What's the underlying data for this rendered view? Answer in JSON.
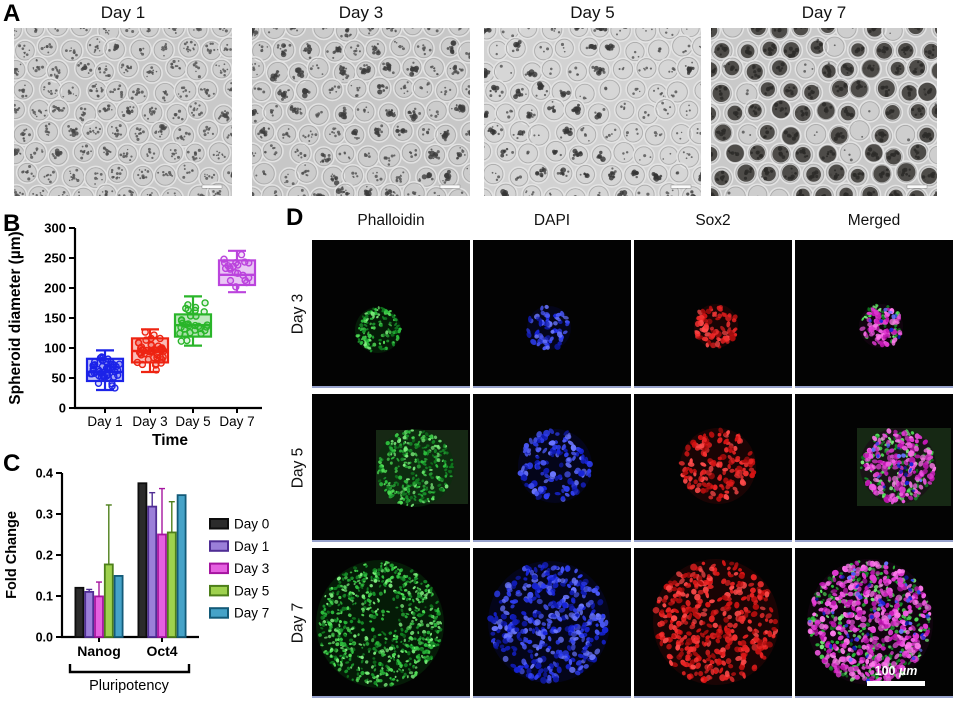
{
  "figure": {
    "panel_a": {
      "label": "A",
      "images": [
        {
          "title": "Day 1"
        },
        {
          "title": "Day 3"
        },
        {
          "title": "Day 5"
        },
        {
          "title": "Day 7"
        }
      ]
    },
    "panel_b": {
      "label": "B"
    },
    "panel_c": {
      "label": "C"
    },
    "panel_d": {
      "label": "D",
      "columns": [
        "Phalloidin",
        "DAPI",
        "Sox2",
        "Merged"
      ],
      "rows": [
        "Day 3",
        "Day 5",
        "Day 7"
      ],
      "scale_bar": "100 µm"
    }
  },
  "chart_data": [
    {
      "type": "box",
      "panel": "B",
      "title": "",
      "xlabel": "Time",
      "ylabel": "Spheroid diameter (µm)",
      "ylim": [
        0,
        300
      ],
      "yticks": [
        0,
        50,
        100,
        150,
        200,
        250,
        300
      ],
      "categories": [
        "Day 1",
        "Day 3",
        "Day 5",
        "Day 7"
      ],
      "colors": [
        "#1c23e8",
        "#ee2412",
        "#2ab52a",
        "#bb44dd"
      ],
      "boxes": [
        {
          "min": 30,
          "q1": 45,
          "median": 60,
          "q3": 82,
          "max": 96,
          "n_points": 48
        },
        {
          "min": 60,
          "q1": 76,
          "median": 95,
          "q3": 116,
          "max": 131,
          "n_points": 44
        },
        {
          "min": 104,
          "q1": 119,
          "median": 138,
          "q3": 156,
          "max": 186,
          "n_points": 30
        },
        {
          "min": 193,
          "q1": 205,
          "median": 222,
          "q3": 246,
          "max": 262,
          "n_points": 20
        }
      ]
    },
    {
      "type": "bar",
      "panel": "C",
      "title": "",
      "xlabel": "",
      "ylabel": "Fold Change",
      "ylim": [
        0,
        0.4
      ],
      "ytick_labels": [
        "0.0",
        "0.1",
        "0.2",
        "0.3",
        "0.4"
      ],
      "categories": [
        "Nanog",
        "Oct4"
      ],
      "group_label": "Pluripotency",
      "legend_position": "right",
      "series": [
        {
          "name": "Day 0",
          "fill": "#2b2b2b",
          "edge": "#0d0d0d",
          "values": [
            0.12,
            0.375
          ],
          "errors": [
            0,
            0
          ]
        },
        {
          "name": "Day 1",
          "fill": "#9b7fd9",
          "edge": "#4f2d94",
          "values": [
            0.11,
            0.318
          ],
          "errors": [
            0.006,
            0.034
          ]
        },
        {
          "name": "Day 3",
          "fill": "#e560e0",
          "edge": "#a515a0",
          "values": [
            0.099,
            0.25
          ],
          "errors": [
            0.035,
            0.112
          ]
        },
        {
          "name": "Day 5",
          "fill": "#9ed14e",
          "edge": "#4d7f1a",
          "values": [
            0.177,
            0.255
          ],
          "errors": [
            0.145,
            0.075
          ]
        },
        {
          "name": "Day 7",
          "fill": "#46a3c8",
          "edge": "#135a78",
          "values": [
            0.149,
            0.346
          ],
          "errors": [
            0,
            0
          ]
        }
      ]
    }
  ]
}
